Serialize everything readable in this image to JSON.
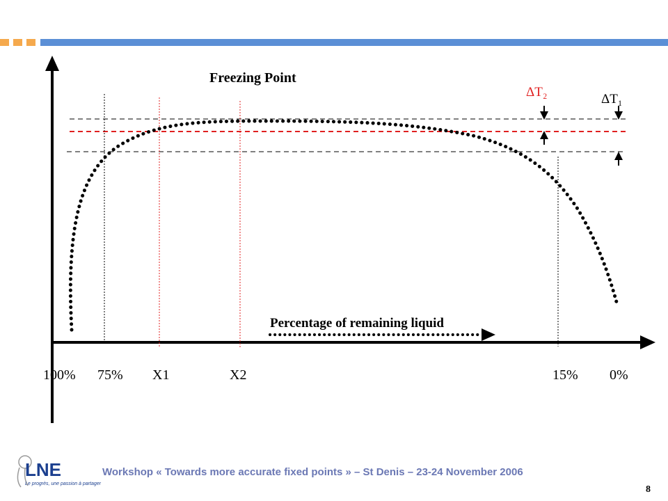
{
  "header": {
    "squares_color": "#f5a94d",
    "bar_color": "#5b8fd6"
  },
  "diagram": {
    "title": "Freezing Point",
    "x_axis_label": "Percentage of remaining liquid",
    "delta_t2": "ΔT₂",
    "delta_t1": "ΔT₁",
    "tick_labels": [
      "100%",
      "75%",
      "X1",
      "X2",
      "15%",
      "0%"
    ],
    "red_color": "#e02020"
  },
  "footer": {
    "logo_text": "LNE",
    "logo_tagline": "Le progrès, une passion à partager",
    "text": "Workshop « Towards more accurate fixed points »  – St Denis – 23-24 November 2006",
    "page_number": "8"
  }
}
